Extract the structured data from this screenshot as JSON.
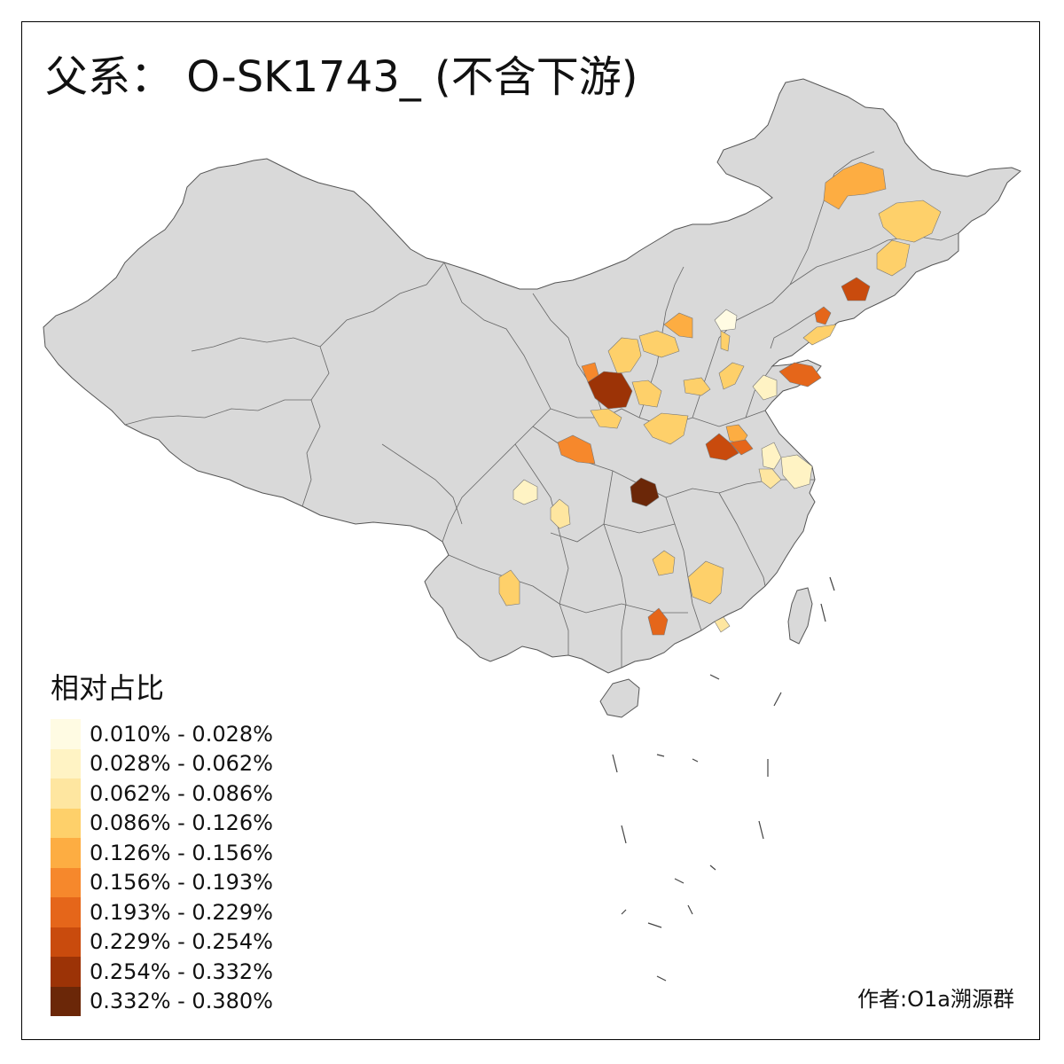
{
  "title": "父系： O-SK1743_ (不含下游)",
  "legend": {
    "title": "相对占比",
    "items": [
      {
        "label": "0.010% - 0.028%",
        "color": "#FFFBE3"
      },
      {
        "label": "0.028% - 0.062%",
        "color": "#FFF3C4"
      },
      {
        "label": "0.062% - 0.086%",
        "color": "#FEE6A0"
      },
      {
        "label": "0.086% - 0.126%",
        "color": "#FED06A"
      },
      {
        "label": "0.126% - 0.156%",
        "color": "#FDAD42"
      },
      {
        "label": "0.156% - 0.193%",
        "color": "#F6882C"
      },
      {
        "label": "0.193% - 0.229%",
        "color": "#E5661A"
      },
      {
        "label": "0.229% - 0.254%",
        "color": "#C94B0D"
      },
      {
        "label": "0.254% - 0.332%",
        "color": "#9C3306"
      },
      {
        "label": "0.332% - 0.380%",
        "color": "#6B2708"
      }
    ]
  },
  "credit": "作者:O1a溯源群",
  "colors": {
    "land": "#D9D9D9",
    "border": "#555555",
    "frame": "#000000"
  }
}
